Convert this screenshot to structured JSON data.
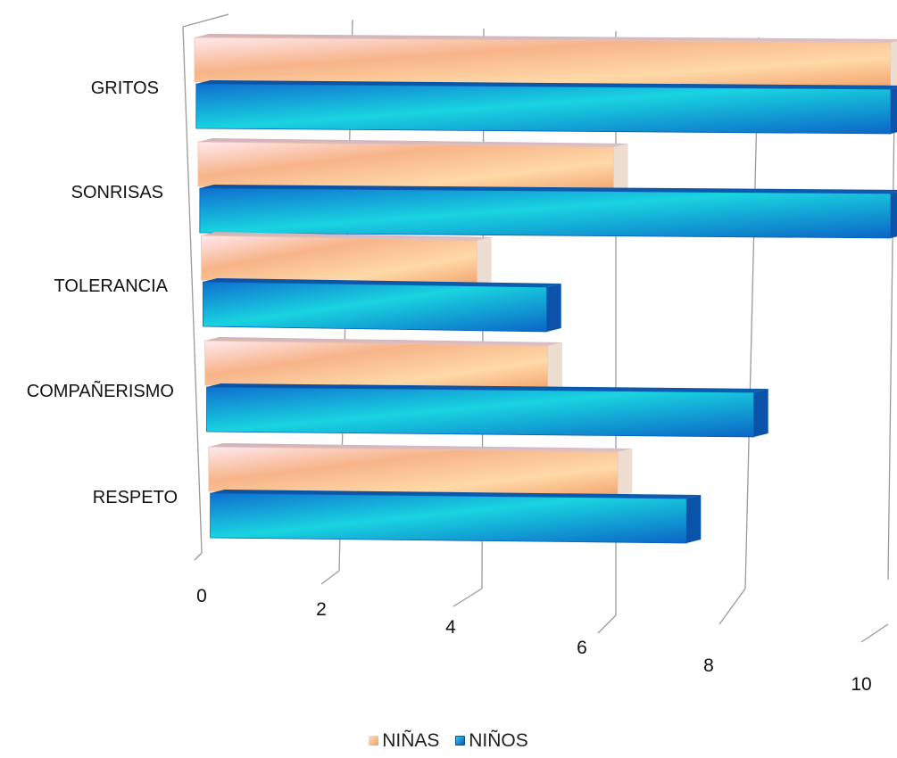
{
  "chart_data": {
    "type": "bar",
    "orientation": "horizontal",
    "style": "3d",
    "categories": [
      "GRITOS",
      "SONRISAS",
      "TOLERANCIA",
      "COMPAÑERISMO",
      "RESPETO"
    ],
    "series": [
      {
        "name": "NIÑAS",
        "values": [
          10,
          6,
          4,
          5,
          6
        ],
        "color": "#f5a66a"
      },
      {
        "name": "NIÑOS",
        "values": [
          10,
          10,
          5,
          8,
          7
        ],
        "color": "#1378d1"
      }
    ],
    "x_ticks": [
      "0",
      "2",
      "4",
      "6",
      "8",
      "10"
    ],
    "xlim": [
      0,
      10
    ],
    "grid": true,
    "legend_position": "bottom",
    "title": "",
    "xlabel": "",
    "ylabel": ""
  }
}
